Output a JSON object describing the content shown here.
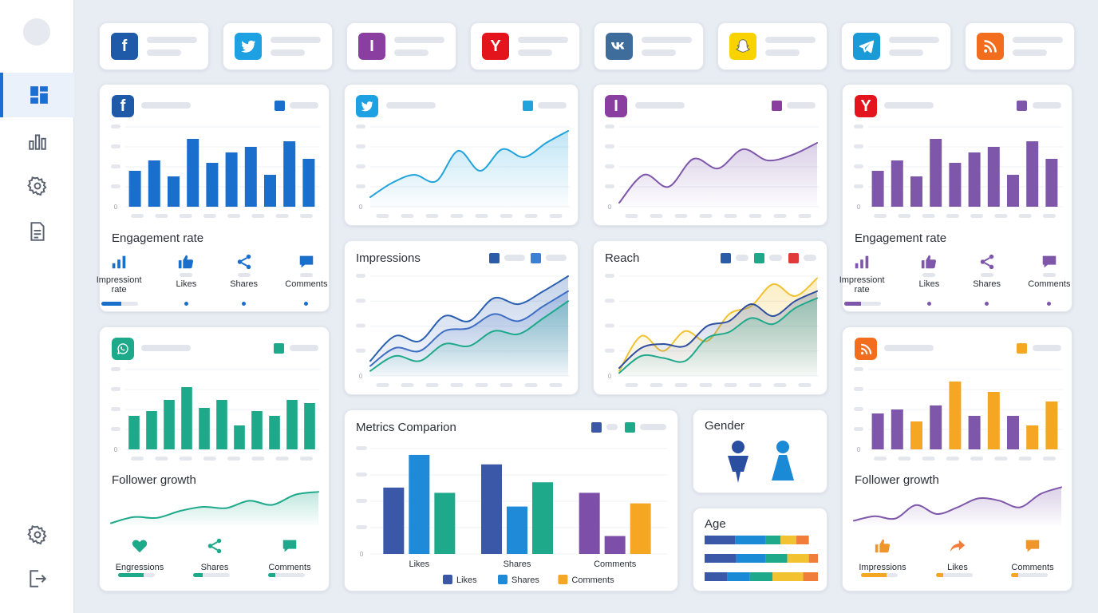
{
  "networks": [
    {
      "name": "facebook",
      "color": "#1e5aa8",
      "glyph": "f"
    },
    {
      "name": "twitter",
      "color": "#1da1e2",
      "glyph": "twitter-bird"
    },
    {
      "name": "instagram",
      "color": "#8a3fa0",
      "glyph": "I"
    },
    {
      "name": "yelp",
      "color": "#e3141c",
      "glyph": "Y"
    },
    {
      "name": "vk",
      "color": "#3e6d9c",
      "glyph": "vk"
    },
    {
      "name": "snapchat",
      "color": "#f8d300",
      "glyph": "ghost"
    },
    {
      "name": "telegram",
      "color": "#1a9bd8",
      "glyph": "plane"
    },
    {
      "name": "rss",
      "color": "#f26d1d",
      "glyph": "rss"
    }
  ],
  "colors": {
    "blue": "#1a6fcd",
    "cyan": "#23a3dc",
    "purple": "#7e57ab",
    "green": "#1ea98a",
    "navy": "#3a57a8",
    "orange": "#f5a623",
    "red": "#e13a3a"
  },
  "engagement_left": {
    "title": "Engagement rate",
    "metrics": [
      {
        "label_l1": "Impressiont",
        "label_l2": "rate",
        "icon": "bar-chart-icon",
        "progress": 0.55
      },
      {
        "label_l1": "Likes",
        "label_l2": "",
        "icon": "thumbs-up-icon",
        "progress": 0.0
      },
      {
        "label_l1": "Shares",
        "label_l2": "",
        "icon": "share-icon",
        "progress": 0.0
      },
      {
        "label_l1": "Comments",
        "label_l2": "",
        "icon": "comment-icon",
        "progress": 0.0
      }
    ]
  },
  "engagement_right": {
    "title": "Engagement rate",
    "metrics": [
      {
        "label_l1": "Impressiont",
        "label_l2": "rate",
        "icon": "bar-chart-icon",
        "progress": 0.45
      },
      {
        "label_l1": "Likes",
        "label_l2": "",
        "icon": "thumbs-up-icon",
        "progress": 0.0
      },
      {
        "label_l1": "Shares",
        "label_l2": "",
        "icon": "share-icon",
        "progress": 0.0
      },
      {
        "label_l1": "Comments",
        "label_l2": "",
        "icon": "comment-icon",
        "progress": 0.0
      }
    ]
  },
  "follower_left": {
    "title": "Follower growth",
    "metrics": [
      {
        "label": "Engressions",
        "icon": "heart-icon",
        "progress": 0.7
      },
      {
        "label": "Shares",
        "icon": "share-icon",
        "progress": 0.25
      },
      {
        "label": "Comments",
        "icon": "comment-icon",
        "progress": 0.2
      }
    ]
  },
  "follower_right": {
    "title": "Follower growth",
    "metrics": [
      {
        "label": "Impressions",
        "icon": "thumbs-up-icon",
        "progress": 0.7
      },
      {
        "label": "Likes",
        "icon": "forward-icon",
        "progress": 0.2
      },
      {
        "label": "Comments",
        "icon": "comment-icon",
        "progress": 0.2
      }
    ]
  },
  "impressions": {
    "title": "Impressions"
  },
  "reach": {
    "title": "Reach"
  },
  "metrics_comparison": {
    "title": "Metrics Comparion"
  },
  "gender": {
    "title": "Gender"
  },
  "age": {
    "title": "Age"
  },
  "chart_data": [
    {
      "id": "fb-bars",
      "type": "bar",
      "y_zero_label": "0",
      "values": [
        45,
        58,
        38,
        85,
        55,
        68,
        75,
        40,
        82,
        60
      ],
      "ylim": [
        0,
        100
      ]
    },
    {
      "id": "tw-line",
      "type": "area",
      "y_zero_label": "0",
      "values": [
        12,
        30,
        40,
        32,
        70,
        45,
        72,
        62,
        80,
        95
      ],
      "ylim": [
        0,
        100
      ]
    },
    {
      "id": "ig-line",
      "type": "area",
      "y_zero_label": "0",
      "values": [
        5,
        40,
        25,
        60,
        48,
        72,
        58,
        65,
        80
      ],
      "ylim": [
        0,
        100
      ]
    },
    {
      "id": "yelp-bars",
      "type": "bar",
      "y_zero_label": "0",
      "values": [
        45,
        58,
        38,
        85,
        55,
        68,
        75,
        40,
        82,
        60
      ],
      "ylim": [
        0,
        100
      ]
    },
    {
      "id": "impressions",
      "type": "line",
      "y_zero_label": "0",
      "series": [
        {
          "values": [
            15,
            40,
            35,
            60,
            55,
            78,
            72,
            85,
            100
          ]
        },
        {
          "values": [
            10,
            28,
            25,
            45,
            48,
            62,
            55,
            70,
            85
          ]
        },
        {
          "values": [
            5,
            20,
            15,
            32,
            30,
            45,
            42,
            58,
            75
          ]
        }
      ],
      "ylim": [
        0,
        100
      ]
    },
    {
      "id": "reach",
      "type": "line",
      "y_zero_label": "0",
      "series": [
        {
          "values": [
            5,
            40,
            25,
            45,
            35,
            62,
            70,
            92,
            80,
            98
          ]
        },
        {
          "values": [
            8,
            28,
            32,
            30,
            50,
            55,
            72,
            60,
            75,
            85
          ]
        },
        {
          "values": [
            3,
            20,
            18,
            15,
            38,
            44,
            58,
            52,
            68,
            78
          ]
        }
      ],
      "ylim": [
        0,
        100
      ]
    },
    {
      "id": "wa-bars",
      "type": "bar",
      "y_zero_label": "0",
      "values": [
        42,
        48,
        62,
        78,
        52,
        62,
        30,
        48,
        42,
        62,
        58
      ],
      "ylim": [
        0,
        100
      ]
    },
    {
      "id": "wa-line",
      "type": "area",
      "values": [
        5,
        20,
        18,
        35,
        45,
        42,
        60,
        50,
        75,
        82
      ],
      "ylim": [
        0,
        100
      ]
    },
    {
      "id": "rss-bars",
      "type": "bar",
      "y_zero_label": "0",
      "values": [
        45,
        50,
        35,
        55,
        85,
        42,
        72,
        42,
        30,
        60
      ],
      "ylim": [
        0,
        100
      ],
      "colors_pattern": [
        "purple",
        "purple",
        "orange",
        "purple",
        "orange",
        "purple",
        "orange",
        "purple",
        "orange",
        "orange"
      ]
    },
    {
      "id": "rss-line",
      "type": "area",
      "values": [
        10,
        20,
        15,
        45,
        25,
        40,
        60,
        55,
        40,
        70,
        85
      ],
      "ylim": [
        0,
        100
      ]
    },
    {
      "id": "metrics-comparison",
      "type": "bar",
      "y_zero_label": "0",
      "categories": [
        "Likes",
        "Shares",
        "Comments"
      ],
      "series": [
        {
          "name": "Likes",
          "values": [
            63,
            85,
            58
          ]
        },
        {
          "name": "Shares",
          "values": [
            94,
            45,
            17
          ]
        },
        {
          "name": "Comments",
          "values": [
            58,
            68,
            48
          ]
        }
      ],
      "ylim": [
        0,
        100
      ],
      "legend": "bottom"
    },
    {
      "id": "age",
      "type": "stacked-bar",
      "rows": [
        [
          0.27,
          0.27,
          0.13,
          0.14,
          0.11
        ],
        [
          0.28,
          0.26,
          0.19,
          0.19,
          0.08
        ],
        [
          0.2,
          0.2,
          0.2,
          0.27,
          0.13
        ]
      ]
    }
  ]
}
